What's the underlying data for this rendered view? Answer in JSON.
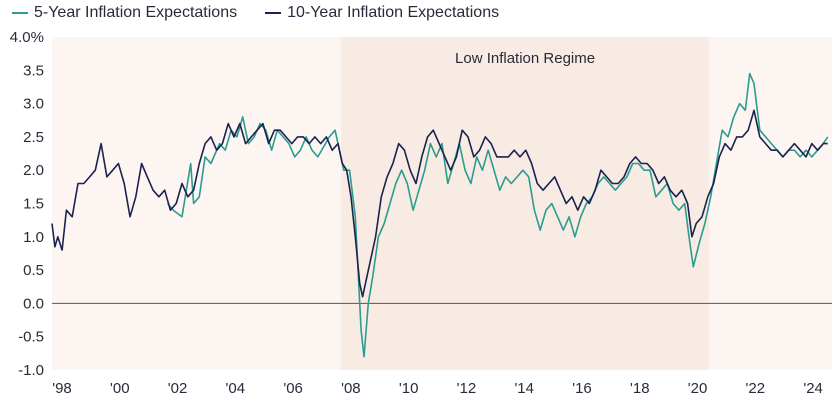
{
  "chart_data": {
    "type": "line",
    "title": "",
    "xlabel": "",
    "ylabel": "",
    "x_tick_labels": [
      "'98",
      "'00",
      "'02",
      "'04",
      "'06",
      "'08",
      "'10",
      "'12",
      "'14",
      "'16",
      "'18",
      "'20",
      "'22",
      "'24"
    ],
    "y_tick_labels": [
      "4.0%",
      "3.5",
      "3.0",
      "2.5",
      "2.0",
      "1.5",
      "1.0",
      "0.5",
      "0.0",
      "-0.5",
      "-1.0"
    ],
    "ylim": [
      -1.0,
      4.0
    ],
    "xlim": [
      1998.0,
      2025.0
    ],
    "grid": false,
    "legend_position": "top-left",
    "shaded_regions": [
      {
        "start": 1998.0,
        "end": 2008.0,
        "label": ""
      },
      {
        "start": 2008.0,
        "end": 2020.75,
        "label": "Low Inflation Regime"
      },
      {
        "start": 2020.75,
        "end": 2025.0,
        "label": ""
      }
    ],
    "colors": {
      "five_year": "#2a9d8f",
      "ten_year": "#1b2250",
      "shade_light": "#fdf5f1",
      "shade_dark": "#f8ebe3",
      "zero_line": "#555555"
    },
    "series": [
      {
        "name": "5-Year Inflation Expectations",
        "points": [
          [
            2002.0,
            1.5
          ],
          [
            2002.2,
            1.4
          ],
          [
            2002.5,
            1.3
          ],
          [
            2002.8,
            2.1
          ],
          [
            2002.9,
            1.5
          ],
          [
            2003.1,
            1.6
          ],
          [
            2003.3,
            2.2
          ],
          [
            2003.5,
            2.1
          ],
          [
            2003.8,
            2.4
          ],
          [
            2004.0,
            2.3
          ],
          [
            2004.2,
            2.6
          ],
          [
            2004.4,
            2.5
          ],
          [
            2004.6,
            2.8
          ],
          [
            2004.8,
            2.4
          ],
          [
            2005.0,
            2.5
          ],
          [
            2005.2,
            2.7
          ],
          [
            2005.4,
            2.6
          ],
          [
            2005.6,
            2.3
          ],
          [
            2005.8,
            2.6
          ],
          [
            2006.0,
            2.5
          ],
          [
            2006.2,
            2.4
          ],
          [
            2006.4,
            2.2
          ],
          [
            2006.6,
            2.3
          ],
          [
            2006.8,
            2.5
          ],
          [
            2007.0,
            2.3
          ],
          [
            2007.2,
            2.2
          ],
          [
            2007.4,
            2.35
          ],
          [
            2007.6,
            2.5
          ],
          [
            2007.8,
            2.6
          ],
          [
            2007.95,
            2.3
          ],
          [
            2008.1,
            2.0
          ],
          [
            2008.3,
            2.0
          ],
          [
            2008.5,
            1.3
          ],
          [
            2008.7,
            -0.4
          ],
          [
            2008.8,
            -0.8
          ],
          [
            2008.95,
            0.0
          ],
          [
            2009.1,
            0.4
          ],
          [
            2009.3,
            1.0
          ],
          [
            2009.5,
            1.2
          ],
          [
            2009.7,
            1.5
          ],
          [
            2009.9,
            1.8
          ],
          [
            2010.1,
            2.0
          ],
          [
            2010.3,
            1.8
          ],
          [
            2010.5,
            1.4
          ],
          [
            2010.7,
            1.7
          ],
          [
            2010.9,
            2.0
          ],
          [
            2011.1,
            2.4
          ],
          [
            2011.3,
            2.2
          ],
          [
            2011.5,
            2.4
          ],
          [
            2011.7,
            1.8
          ],
          [
            2011.9,
            2.1
          ],
          [
            2012.1,
            2.4
          ],
          [
            2012.3,
            2.0
          ],
          [
            2012.5,
            1.8
          ],
          [
            2012.7,
            2.2
          ],
          [
            2012.9,
            2.0
          ],
          [
            2013.1,
            2.3
          ],
          [
            2013.3,
            2.0
          ],
          [
            2013.5,
            1.7
          ],
          [
            2013.7,
            1.9
          ],
          [
            2013.9,
            1.8
          ],
          [
            2014.1,
            1.9
          ],
          [
            2014.3,
            2.0
          ],
          [
            2014.5,
            1.9
          ],
          [
            2014.7,
            1.4
          ],
          [
            2014.9,
            1.1
          ],
          [
            2015.1,
            1.4
          ],
          [
            2015.3,
            1.5
          ],
          [
            2015.5,
            1.3
          ],
          [
            2015.7,
            1.1
          ],
          [
            2015.9,
            1.3
          ],
          [
            2016.1,
            1.0
          ],
          [
            2016.3,
            1.3
          ],
          [
            2016.5,
            1.5
          ],
          [
            2016.7,
            1.6
          ],
          [
            2016.9,
            1.8
          ],
          [
            2017.1,
            1.9
          ],
          [
            2017.3,
            1.8
          ],
          [
            2017.5,
            1.7
          ],
          [
            2017.7,
            1.8
          ],
          [
            2017.9,
            1.9
          ],
          [
            2018.1,
            2.1
          ],
          [
            2018.3,
            2.1
          ],
          [
            2018.5,
            2.0
          ],
          [
            2018.7,
            2.0
          ],
          [
            2018.9,
            1.6
          ],
          [
            2019.1,
            1.7
          ],
          [
            2019.3,
            1.8
          ],
          [
            2019.5,
            1.5
          ],
          [
            2019.7,
            1.4
          ],
          [
            2019.9,
            1.5
          ],
          [
            2020.05,
            1.0
          ],
          [
            2020.2,
            0.55
          ],
          [
            2020.4,
            0.9
          ],
          [
            2020.6,
            1.2
          ],
          [
            2020.8,
            1.6
          ],
          [
            2021.0,
            2.1
          ],
          [
            2021.2,
            2.6
          ],
          [
            2021.4,
            2.5
          ],
          [
            2021.6,
            2.8
          ],
          [
            2021.8,
            3.0
          ],
          [
            2022.0,
            2.9
          ],
          [
            2022.15,
            3.45
          ],
          [
            2022.3,
            3.3
          ],
          [
            2022.5,
            2.6
          ],
          [
            2022.7,
            2.5
          ],
          [
            2022.9,
            2.4
          ],
          [
            2023.1,
            2.3
          ],
          [
            2023.3,
            2.2
          ],
          [
            2023.5,
            2.3
          ],
          [
            2023.7,
            2.3
          ],
          [
            2023.9,
            2.2
          ],
          [
            2024.1,
            2.3
          ],
          [
            2024.3,
            2.2
          ],
          [
            2024.5,
            2.3
          ],
          [
            2024.7,
            2.4
          ],
          [
            2024.85,
            2.5
          ]
        ]
      },
      {
        "name": "10-Year Inflation Expectations",
        "points": [
          [
            1998.0,
            1.2
          ],
          [
            1998.1,
            0.85
          ],
          [
            1998.2,
            1.0
          ],
          [
            1998.35,
            0.8
          ],
          [
            1998.5,
            1.4
          ],
          [
            1998.7,
            1.3
          ],
          [
            1998.9,
            1.8
          ],
          [
            1999.1,
            1.8
          ],
          [
            1999.3,
            1.9
          ],
          [
            1999.5,
            2.0
          ],
          [
            1999.7,
            2.4
          ],
          [
            1999.9,
            1.9
          ],
          [
            2000.1,
            2.0
          ],
          [
            2000.3,
            2.1
          ],
          [
            2000.5,
            1.8
          ],
          [
            2000.7,
            1.3
          ],
          [
            2000.9,
            1.6
          ],
          [
            2001.1,
            2.1
          ],
          [
            2001.3,
            1.9
          ],
          [
            2001.5,
            1.7
          ],
          [
            2001.7,
            1.6
          ],
          [
            2001.9,
            1.7
          ],
          [
            2002.1,
            1.4
          ],
          [
            2002.3,
            1.5
          ],
          [
            2002.5,
            1.8
          ],
          [
            2002.7,
            1.6
          ],
          [
            2002.9,
            1.7
          ],
          [
            2003.1,
            2.1
          ],
          [
            2003.3,
            2.4
          ],
          [
            2003.5,
            2.5
          ],
          [
            2003.7,
            2.3
          ],
          [
            2003.9,
            2.4
          ],
          [
            2004.1,
            2.7
          ],
          [
            2004.3,
            2.5
          ],
          [
            2004.5,
            2.7
          ],
          [
            2004.7,
            2.4
          ],
          [
            2004.9,
            2.5
          ],
          [
            2005.1,
            2.6
          ],
          [
            2005.3,
            2.7
          ],
          [
            2005.5,
            2.4
          ],
          [
            2005.7,
            2.6
          ],
          [
            2005.9,
            2.6
          ],
          [
            2006.1,
            2.5
          ],
          [
            2006.3,
            2.4
          ],
          [
            2006.5,
            2.5
          ],
          [
            2006.7,
            2.5
          ],
          [
            2006.9,
            2.4
          ],
          [
            2007.1,
            2.5
          ],
          [
            2007.3,
            2.4
          ],
          [
            2007.5,
            2.5
          ],
          [
            2007.7,
            2.3
          ],
          [
            2007.9,
            2.4
          ],
          [
            2008.05,
            2.1
          ],
          [
            2008.2,
            2.0
          ],
          [
            2008.35,
            1.6
          ],
          [
            2008.5,
            1.0
          ],
          [
            2008.65,
            0.3
          ],
          [
            2008.75,
            0.1
          ],
          [
            2008.9,
            0.4
          ],
          [
            2009.0,
            0.6
          ],
          [
            2009.2,
            1.0
          ],
          [
            2009.4,
            1.6
          ],
          [
            2009.6,
            1.9
          ],
          [
            2009.8,
            2.1
          ],
          [
            2010.0,
            2.4
          ],
          [
            2010.2,
            2.3
          ],
          [
            2010.4,
            2.0
          ],
          [
            2010.6,
            1.8
          ],
          [
            2010.8,
            2.2
          ],
          [
            2011.0,
            2.5
          ],
          [
            2011.2,
            2.6
          ],
          [
            2011.4,
            2.4
          ],
          [
            2011.6,
            2.2
          ],
          [
            2011.8,
            2.0
          ],
          [
            2012.0,
            2.2
          ],
          [
            2012.2,
            2.6
          ],
          [
            2012.4,
            2.5
          ],
          [
            2012.6,
            2.2
          ],
          [
            2012.8,
            2.3
          ],
          [
            2013.0,
            2.5
          ],
          [
            2013.2,
            2.4
          ],
          [
            2013.4,
            2.2
          ],
          [
            2013.6,
            2.2
          ],
          [
            2013.8,
            2.2
          ],
          [
            2014.0,
            2.3
          ],
          [
            2014.2,
            2.2
          ],
          [
            2014.4,
            2.3
          ],
          [
            2014.6,
            2.1
          ],
          [
            2014.8,
            1.8
          ],
          [
            2015.0,
            1.7
          ],
          [
            2015.2,
            1.8
          ],
          [
            2015.4,
            1.9
          ],
          [
            2015.6,
            1.7
          ],
          [
            2015.8,
            1.5
          ],
          [
            2016.0,
            1.6
          ],
          [
            2016.2,
            1.4
          ],
          [
            2016.4,
            1.6
          ],
          [
            2016.6,
            1.5
          ],
          [
            2016.8,
            1.7
          ],
          [
            2017.0,
            2.0
          ],
          [
            2017.2,
            1.9
          ],
          [
            2017.4,
            1.8
          ],
          [
            2017.6,
            1.8
          ],
          [
            2017.8,
            1.9
          ],
          [
            2018.0,
            2.1
          ],
          [
            2018.2,
            2.2
          ],
          [
            2018.4,
            2.1
          ],
          [
            2018.6,
            2.1
          ],
          [
            2018.8,
            2.0
          ],
          [
            2019.0,
            1.8
          ],
          [
            2019.2,
            1.9
          ],
          [
            2019.4,
            1.7
          ],
          [
            2019.6,
            1.6
          ],
          [
            2019.8,
            1.7
          ],
          [
            2020.0,
            1.5
          ],
          [
            2020.15,
            1.0
          ],
          [
            2020.3,
            1.2
          ],
          [
            2020.5,
            1.3
          ],
          [
            2020.7,
            1.6
          ],
          [
            2020.9,
            1.8
          ],
          [
            2021.1,
            2.2
          ],
          [
            2021.3,
            2.4
          ],
          [
            2021.5,
            2.3
          ],
          [
            2021.7,
            2.5
          ],
          [
            2021.9,
            2.5
          ],
          [
            2022.1,
            2.6
          ],
          [
            2022.3,
            2.9
          ],
          [
            2022.5,
            2.5
          ],
          [
            2022.7,
            2.4
          ],
          [
            2022.9,
            2.3
          ],
          [
            2023.1,
            2.3
          ],
          [
            2023.3,
            2.2
          ],
          [
            2023.5,
            2.3
          ],
          [
            2023.7,
            2.4
          ],
          [
            2023.9,
            2.3
          ],
          [
            2024.1,
            2.2
          ],
          [
            2024.3,
            2.4
          ],
          [
            2024.5,
            2.3
          ],
          [
            2024.7,
            2.4
          ],
          [
            2024.85,
            2.4
          ]
        ]
      }
    ]
  }
}
